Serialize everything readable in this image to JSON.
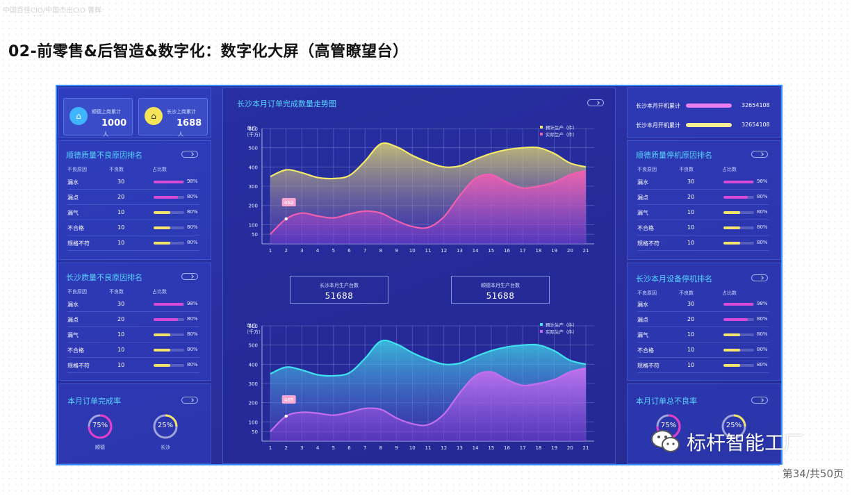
{
  "watermark": "中国百佳CIO/中国杰出CIO 曹辉",
  "title": "02-前零售&后智造&数字化：数字化大屏（高管瞭望台）",
  "page_indicator": "第34/共50页",
  "brand": "标杆智能工厂",
  "left": {
    "stats": [
      {
        "label": "顺德上岗累计",
        "value": "1000",
        "unit": "人",
        "color": "#3fb5ff",
        "icon": "home-icon"
      },
      {
        "label": "长沙上岗累计",
        "value": "1688",
        "unit": "人",
        "color": "#f5e35a",
        "icon": "home-icon"
      }
    ],
    "sections": [
      {
        "title": "顺德质量不良原因排名",
        "headers": [
          "不良原因",
          "不良数",
          "占比数"
        ],
        "rows": [
          {
            "reason": "漏水",
            "count": "30",
            "pct": "98%",
            "fill": 0.98,
            "color": "#d94bd6"
          },
          {
            "reason": "漏点",
            "count": "20",
            "pct": "80%",
            "fill": 0.8,
            "color": "#d94bd6"
          },
          {
            "reason": "漏气",
            "count": "10",
            "pct": "80%",
            "fill": 0.55,
            "color": "#f2e36a"
          },
          {
            "reason": "不合格",
            "count": "10",
            "pct": "80%",
            "fill": 0.55,
            "color": "#f2e36a"
          },
          {
            "reason": "规格不符",
            "count": "10",
            "pct": "80%",
            "fill": 0.55,
            "color": "#f2e36a"
          }
        ]
      },
      {
        "title": "长沙质量不良原因排名",
        "headers": [
          "不良原因",
          "不良数",
          "占比数"
        ],
        "rows": [
          {
            "reason": "漏水",
            "count": "30",
            "pct": "98%",
            "fill": 0.98,
            "color": "#d94bd6"
          },
          {
            "reason": "漏点",
            "count": "20",
            "pct": "80%",
            "fill": 0.8,
            "color": "#d94bd6"
          },
          {
            "reason": "漏气",
            "count": "10",
            "pct": "80%",
            "fill": 0.55,
            "color": "#f2e36a"
          },
          {
            "reason": "不合格",
            "count": "10",
            "pct": "80%",
            "fill": 0.55,
            "color": "#f2e36a"
          },
          {
            "reason": "规格不符",
            "count": "10",
            "pct": "80%",
            "fill": 0.55,
            "color": "#f2e36a"
          }
        ]
      }
    ],
    "completion": {
      "title": "本月订单完成率",
      "rings": [
        {
          "value": "75%",
          "fraction": 0.75,
          "label": "顺德",
          "color": "#e23cc8"
        },
        {
          "value": "25%",
          "fraction": 0.25,
          "label": "长沙",
          "color": "#f2e36a"
        }
      ]
    }
  },
  "center": {
    "title": "长沙本月订单完成数量走势图",
    "kpis": [
      {
        "label": "长沙本月生产台数",
        "value": "51688"
      },
      {
        "label": "顺德本月生产台数",
        "value": "51688"
      }
    ]
  },
  "right": {
    "stats": [
      {
        "label": "长沙本月开机累计",
        "value": "32654108",
        "color": "#e87ef0"
      },
      {
        "label": "长沙本月开机累计",
        "value": "32654108",
        "color": "#f5ef9a"
      }
    ],
    "sections": [
      {
        "title": "顺德质量停机原因排名",
        "headers": [
          "不良原因",
          "不良数",
          "占比数"
        ],
        "rows": [
          {
            "reason": "漏水",
            "count": "30",
            "pct": "98%",
            "fill": 0.98,
            "color": "#d94bd6"
          },
          {
            "reason": "漏点",
            "count": "20",
            "pct": "80%",
            "fill": 0.8,
            "color": "#d94bd6"
          },
          {
            "reason": "漏气",
            "count": "10",
            "pct": "80%",
            "fill": 0.55,
            "color": "#f2e36a"
          },
          {
            "reason": "不合格",
            "count": "10",
            "pct": "80%",
            "fill": 0.55,
            "color": "#f2e36a"
          },
          {
            "reason": "规格不符",
            "count": "10",
            "pct": "80%",
            "fill": 0.55,
            "color": "#f2e36a"
          }
        ]
      },
      {
        "title": "长沙本月设备停机排名",
        "headers": [
          "不良原因",
          "不良数",
          "占比数"
        ],
        "rows": [
          {
            "reason": "漏水",
            "count": "30",
            "pct": "98%",
            "fill": 0.98,
            "color": "#d94bd6"
          },
          {
            "reason": "漏点",
            "count": "20",
            "pct": "80%",
            "fill": 0.8,
            "color": "#d94bd6"
          },
          {
            "reason": "漏气",
            "count": "10",
            "pct": "80%",
            "fill": 0.55,
            "color": "#f2e36a"
          },
          {
            "reason": "不合格",
            "count": "10",
            "pct": "80%",
            "fill": 0.55,
            "color": "#f2e36a"
          },
          {
            "reason": "规格不符",
            "count": "10",
            "pct": "80%",
            "fill": 0.55,
            "color": "#f2e36a"
          }
        ]
      }
    ],
    "defect": {
      "title": "本月订单总不良率",
      "rings": [
        {
          "value": "75%",
          "fraction": 0.75,
          "label": "",
          "color": "#e23cc8"
        },
        {
          "value": "25%",
          "fraction": 0.25,
          "label": "",
          "color": "#f2e36a"
        }
      ]
    }
  },
  "chart_data": [
    {
      "type": "area",
      "title": "长沙本月订单完成数量走势图",
      "ylabel": "单位\n（千方）",
      "x": [
        1,
        2,
        3,
        4,
        5,
        6,
        7,
        8,
        9,
        10,
        11,
        12,
        13,
        14,
        15,
        16,
        17,
        18,
        19,
        20,
        21
      ],
      "y_ticks": [
        50,
        100,
        200,
        300,
        400,
        500,
        600
      ],
      "ylim": [
        0,
        600
      ],
      "callout": "462",
      "series": [
        {
          "name": "预计生产（件）",
          "color": "#f2e86a",
          "values": [
            350,
            385,
            370,
            345,
            340,
            355,
            430,
            520,
            505,
            460,
            425,
            400,
            405,
            440,
            470,
            490,
            500,
            500,
            470,
            420,
            400
          ]
        },
        {
          "name": "实际生产（件）",
          "color": "#f05fb0",
          "values": [
            50,
            130,
            160,
            145,
            135,
            155,
            170,
            160,
            120,
            90,
            85,
            140,
            250,
            340,
            360,
            320,
            290,
            300,
            320,
            360,
            380
          ]
        }
      ]
    },
    {
      "type": "area",
      "title": "",
      "ylabel": "单位\n（千方）",
      "x": [
        1,
        2,
        3,
        4,
        5,
        6,
        7,
        8,
        9,
        10,
        11,
        12,
        13,
        14,
        15,
        16,
        17,
        18,
        19,
        20,
        21
      ],
      "y_ticks": [
        50,
        100,
        200,
        300,
        400,
        500,
        600
      ],
      "ylim": [
        0,
        600
      ],
      "callout": "465",
      "series": [
        {
          "name": "预计生产（件）",
          "color": "#3fe3ef",
          "values": [
            350,
            385,
            370,
            345,
            340,
            355,
            430,
            520,
            505,
            460,
            425,
            400,
            405,
            440,
            470,
            490,
            500,
            500,
            470,
            420,
            400
          ]
        },
        {
          "name": "实际生产（件）",
          "color": "#c56ff0",
          "values": [
            50,
            130,
            150,
            145,
            135,
            150,
            170,
            165,
            120,
            90,
            85,
            140,
            250,
            340,
            360,
            320,
            290,
            300,
            320,
            360,
            380
          ]
        }
      ]
    }
  ]
}
